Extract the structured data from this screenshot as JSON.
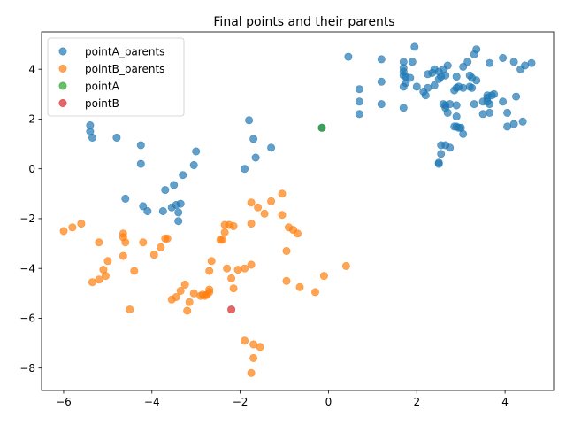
{
  "chart_data": {
    "type": "scatter",
    "title": "Final points and their parents",
    "xlabel": "",
    "ylabel": "",
    "xlim": [
      -6.5,
      5.1
    ],
    "ylim": [
      -8.9,
      5.5
    ],
    "xticks": [
      -6,
      -4,
      -2,
      0,
      2,
      4
    ],
    "yticks": [
      -8,
      -6,
      -4,
      -2,
      0,
      2,
      4
    ],
    "grid": false,
    "legend_position": "top-left",
    "series": [
      {
        "name": "pointA_parents",
        "color": "#1f77b4",
        "points": [
          [
            -5.4,
            1.75
          ],
          [
            -5.4,
            1.5
          ],
          [
            -5.35,
            1.25
          ],
          [
            -4.8,
            1.25
          ],
          [
            -4.25,
            0.95
          ],
          [
            -4.25,
            0.2
          ],
          [
            -4.6,
            -1.2
          ],
          [
            -4.2,
            -1.5
          ],
          [
            -4.1,
            -1.7
          ],
          [
            -3.75,
            -1.7
          ],
          [
            -3.7,
            -0.85
          ],
          [
            -3.55,
            -1.55
          ],
          [
            -3.5,
            -0.65
          ],
          [
            -3.45,
            -1.45
          ],
          [
            -3.4,
            -1.75
          ],
          [
            -3.35,
            -1.4
          ],
          [
            -3.3,
            -0.25
          ],
          [
            -3.4,
            -2.1
          ],
          [
            -3.05,
            0.15
          ],
          [
            -3.0,
            0.7
          ],
          [
            -1.9,
            0.0
          ],
          [
            -1.8,
            1.95
          ],
          [
            -1.7,
            1.2
          ],
          [
            -1.65,
            0.45
          ],
          [
            -1.3,
            0.85
          ],
          [
            -0.15,
            1.65
          ],
          [
            0.45,
            4.5
          ],
          [
            0.7,
            3.2
          ],
          [
            0.7,
            2.7
          ],
          [
            0.7,
            2.2
          ],
          [
            1.2,
            4.4
          ],
          [
            1.2,
            3.5
          ],
          [
            1.2,
            2.6
          ],
          [
            1.7,
            4.3
          ],
          [
            1.7,
            4.05
          ],
          [
            1.7,
            3.9
          ],
          [
            1.7,
            3.75
          ],
          [
            1.7,
            3.3
          ],
          [
            1.75,
            3.45
          ],
          [
            1.7,
            2.45
          ],
          [
            1.75,
            3.7
          ],
          [
            1.85,
            3.65
          ],
          [
            1.9,
            4.3
          ],
          [
            1.95,
            4.9
          ],
          [
            2.0,
            3.3
          ],
          [
            2.15,
            3.1
          ],
          [
            2.2,
            2.95
          ],
          [
            2.25,
            3.8
          ],
          [
            2.25,
            3.25
          ],
          [
            2.35,
            3.85
          ],
          [
            2.4,
            3.35
          ],
          [
            2.4,
            4.0
          ],
          [
            2.5,
            3.6
          ],
          [
            2.5,
            3.9
          ],
          [
            2.55,
            3.7
          ],
          [
            2.6,
            4.0
          ],
          [
            2.65,
            3.75
          ],
          [
            2.7,
            4.15
          ],
          [
            2.65,
            2.55
          ],
          [
            2.6,
            2.6
          ],
          [
            2.65,
            2.45
          ],
          [
            2.7,
            2.25
          ],
          [
            2.75,
            2.6
          ],
          [
            2.85,
            3.15
          ],
          [
            2.9,
            3.7
          ],
          [
            2.9,
            3.25
          ],
          [
            2.95,
            3.3
          ],
          [
            2.9,
            2.55
          ],
          [
            2.9,
            2.1
          ],
          [
            2.85,
            1.7
          ],
          [
            2.9,
            1.7
          ],
          [
            2.95,
            1.65
          ],
          [
            3.0,
            1.65
          ],
          [
            3.05,
            1.4
          ],
          [
            3.05,
            3.25
          ],
          [
            3.05,
            4.1
          ],
          [
            3.15,
            4.3
          ],
          [
            3.2,
            3.3
          ],
          [
            3.2,
            3.75
          ],
          [
            3.25,
            3.25
          ],
          [
            3.25,
            3.65
          ],
          [
            3.3,
            2.6
          ],
          [
            3.3,
            4.6
          ],
          [
            3.35,
            3.55
          ],
          [
            3.35,
            4.8
          ],
          [
            3.5,
            2.2
          ],
          [
            3.5,
            2.7
          ],
          [
            3.6,
            2.85
          ],
          [
            3.6,
            2.7
          ],
          [
            3.65,
            2.6
          ],
          [
            3.6,
            2.95
          ],
          [
            3.7,
            2.95
          ],
          [
            3.75,
            3.0
          ],
          [
            3.65,
            2.25
          ],
          [
            3.65,
            4.25
          ],
          [
            3.95,
            4.45
          ],
          [
            3.95,
            2.7
          ],
          [
            4.05,
            2.25
          ],
          [
            4.05,
            1.7
          ],
          [
            4.2,
            4.3
          ],
          [
            4.2,
            1.8
          ],
          [
            4.25,
            2.9
          ],
          [
            4.35,
            4.0
          ],
          [
            4.4,
            1.9
          ],
          [
            4.45,
            4.15
          ],
          [
            4.6,
            4.25
          ],
          [
            2.5,
            0.25
          ],
          [
            2.5,
            0.2
          ],
          [
            2.55,
            0.95
          ],
          [
            2.65,
            0.95
          ],
          [
            2.75,
            0.85
          ],
          [
            2.55,
            0.6
          ]
        ]
      },
      {
        "name": "pointB_parents",
        "color": "#ff7f0e",
        "points": [
          [
            -6.0,
            -2.5
          ],
          [
            -5.8,
            -2.35
          ],
          [
            -5.6,
            -2.2
          ],
          [
            -5.35,
            -4.55
          ],
          [
            -5.2,
            -2.95
          ],
          [
            -5.2,
            -4.45
          ],
          [
            -5.1,
            -4.05
          ],
          [
            -5.05,
            -4.3
          ],
          [
            -5.0,
            -3.7
          ],
          [
            -4.65,
            -3.5
          ],
          [
            -4.65,
            -2.6
          ],
          [
            -4.65,
            -2.75
          ],
          [
            -4.6,
            -2.95
          ],
          [
            -4.5,
            -5.65
          ],
          [
            -4.4,
            -4.1
          ],
          [
            -4.2,
            -2.95
          ],
          [
            -3.95,
            -3.45
          ],
          [
            -3.8,
            -3.15
          ],
          [
            -3.7,
            -2.8
          ],
          [
            -3.65,
            -2.8
          ],
          [
            -3.55,
            -5.25
          ],
          [
            -3.45,
            -5.15
          ],
          [
            -3.35,
            -4.9
          ],
          [
            -3.25,
            -4.65
          ],
          [
            -3.2,
            -5.7
          ],
          [
            -3.15,
            -5.35
          ],
          [
            -3.05,
            -5.0
          ],
          [
            -2.9,
            -5.1
          ],
          [
            -2.85,
            -5.05
          ],
          [
            -2.8,
            -5.1
          ],
          [
            -2.75,
            -5.05
          ],
          [
            -2.7,
            -4.95
          ],
          [
            -2.7,
            -4.85
          ],
          [
            -2.7,
            -4.1
          ],
          [
            -2.65,
            -3.7
          ],
          [
            -2.45,
            -2.85
          ],
          [
            -2.4,
            -2.85
          ],
          [
            -2.35,
            -2.25
          ],
          [
            -2.35,
            -2.55
          ],
          [
            -2.3,
            -4.0
          ],
          [
            -2.25,
            -2.25
          ],
          [
            -2.2,
            -4.4
          ],
          [
            -2.15,
            -2.3
          ],
          [
            -2.15,
            -4.8
          ],
          [
            -2.05,
            -4.05
          ],
          [
            -1.9,
            -4.0
          ],
          [
            -1.9,
            -6.9
          ],
          [
            -1.75,
            -2.2
          ],
          [
            -1.75,
            -3.85
          ],
          [
            -1.75,
            -1.35
          ],
          [
            -1.7,
            -7.05
          ],
          [
            -1.7,
            -7.6
          ],
          [
            -1.75,
            -8.2
          ],
          [
            -1.55,
            -7.15
          ],
          [
            -1.6,
            -1.55
          ],
          [
            -1.45,
            -1.8
          ],
          [
            -1.3,
            -1.3
          ],
          [
            -1.05,
            -1.0
          ],
          [
            -1.05,
            -1.85
          ],
          [
            -0.9,
            -2.35
          ],
          [
            -0.8,
            -2.45
          ],
          [
            -0.7,
            -2.6
          ],
          [
            -0.95,
            -3.3
          ],
          [
            -0.95,
            -4.5
          ],
          [
            -0.65,
            -4.75
          ],
          [
            -0.3,
            -4.95
          ],
          [
            -0.1,
            -4.3
          ],
          [
            0.4,
            -3.9
          ]
        ]
      },
      {
        "name": "pointA",
        "color": "#2ca02c",
        "points": [
          [
            -0.15,
            1.65
          ]
        ]
      },
      {
        "name": "pointB",
        "color": "#d62728",
        "points": [
          [
            -2.2,
            -5.65
          ]
        ]
      }
    ]
  }
}
